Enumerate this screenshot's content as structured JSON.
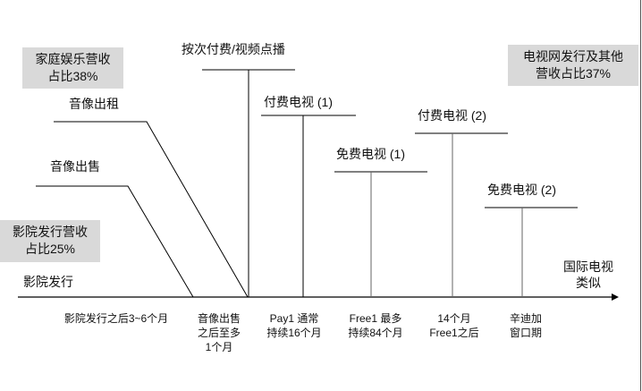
{
  "boxes": {
    "home_entertainment": [
      "家庭娱乐营收",
      "占比38%"
    ],
    "theatrical": [
      "影院发行营收",
      "占比25%"
    ],
    "tv_network": [
      "电视网发行及其他",
      "营收占比37%"
    ]
  },
  "windows": {
    "theatrical": "影院发行",
    "video_sale": "音像出售",
    "video_rental": "音像出租",
    "ppv_vod": "按次付费/视频点播",
    "pay_tv_1": "付费电视 (1)",
    "free_tv_1": "免费电视 (1)",
    "pay_tv_2": "付费电视 (2)",
    "free_tv_2": "免费电视 (2)",
    "international_tv": [
      "国际电视",
      "类似"
    ]
  },
  "axis_labels": [
    [
      "影院发行之后3~6个月"
    ],
    [
      "音像出售",
      "之后至多",
      "1个月"
    ],
    [
      "Pay1 通常",
      "持续16个月"
    ],
    [
      "Free1 最多",
      "持续84个月"
    ],
    [
      "14个月",
      "Free1之后"
    ],
    [
      "辛迪加",
      "窗口期"
    ]
  ],
  "colors": {
    "box_fill": "#d9d9d9",
    "line": "#000000"
  }
}
